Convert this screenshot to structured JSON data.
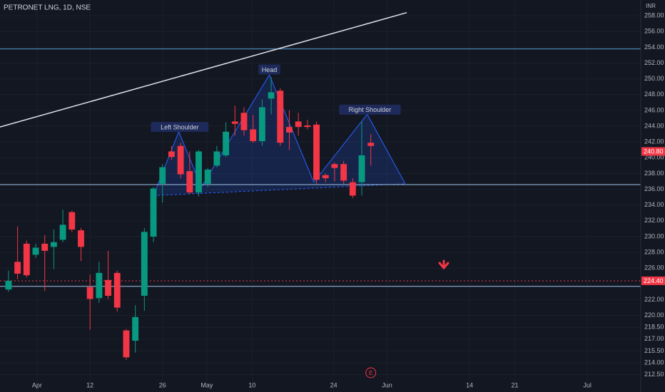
{
  "chart_data": {
    "type": "candlestick",
    "title": "PETRONET LNG, 1D, NSE",
    "currency": "INR",
    "x": [
      0,
      1,
      2,
      3,
      4,
      5,
      6,
      7,
      8,
      9,
      10,
      11,
      12,
      13,
      14,
      15,
      16,
      17,
      18,
      19,
      20,
      21,
      22,
      23,
      24,
      25,
      26,
      27,
      28,
      29,
      30,
      31,
      32,
      33,
      34,
      35,
      36,
      37,
      38,
      39,
      40
    ],
    "open": [
      223.3,
      226.8,
      229.1,
      227.7,
      229.1,
      228.7,
      229.6,
      233.1,
      230.8,
      223.6,
      222.2,
      224.5,
      225.4,
      218.1,
      216.8,
      222.5,
      230.0,
      236.7,
      240.8,
      241.5,
      238.3,
      235.6,
      236.7,
      239.0,
      240.3,
      244.6,
      245.7,
      243.6,
      242.1,
      247.5,
      248.5,
      243.9,
      244.6,
      244.1,
      244.2,
      237.8,
      239.2,
      239.2,
      236.9,
      236.9,
      241.9
    ],
    "high": [
      225.7,
      231.3,
      229.5,
      229.1,
      230.2,
      230.9,
      233.4,
      233.3,
      231.1,
      225.2,
      226.8,
      228.2,
      225.7,
      218.3,
      221.3,
      231.1,
      236.3,
      239.2,
      241.5,
      241.9,
      240.8,
      241.0,
      238.7,
      241.5,
      244.5,
      246.6,
      246.4,
      245.4,
      247.4,
      250.2,
      248.8,
      246.0,
      245.7,
      244.8,
      244.6,
      238.0,
      239.4,
      239.6,
      237.4,
      244.6,
      243.0
    ],
    "low": [
      223.0,
      224.6,
      224.8,
      227.3,
      223.1,
      225.9,
      229.3,
      230.6,
      226.9,
      218.2,
      221.6,
      222.1,
      220.5,
      214.4,
      215.3,
      220.6,
      229.3,
      234.3,
      239.7,
      237.4,
      235.4,
      235.1,
      236.3,
      238.8,
      240.1,
      242.8,
      242.8,
      241.9,
      241.5,
      245.5,
      241.5,
      241.0,
      242.8,
      243.6,
      236.7,
      236.9,
      237.0,
      236.7,
      234.9,
      235.2,
      239.0
    ],
    "close": [
      224.4,
      225.3,
      225.1,
      228.6,
      228.2,
      229.3,
      231.5,
      230.9,
      228.7,
      222.1,
      225.4,
      222.5,
      221.0,
      214.7,
      219.8,
      230.6,
      236.1,
      238.8,
      240.1,
      237.9,
      235.6,
      240.8,
      238.5,
      240.8,
      243.3,
      244.3,
      243.5,
      242.1,
      246.4,
      248.3,
      241.9,
      243.2,
      243.9,
      243.9,
      237.2,
      237.4,
      238.7,
      237.1,
      235.2,
      240.3,
      241.5
    ],
    "up_color": "#089981",
    "down_color": "#f23645",
    "xlim": [
      -0.94,
      69.8
    ],
    "ylim": [
      210.3,
      260.0
    ],
    "xticks": [
      {
        "value": 3.15,
        "label": "Apr"
      },
      {
        "value": 9.0,
        "label": "12"
      },
      {
        "value": 17.0,
        "label": "26"
      },
      {
        "value": 21.9,
        "label": "May"
      },
      {
        "value": 26.9,
        "label": "10"
      },
      {
        "value": 35.9,
        "label": "24"
      },
      {
        "value": 41.8,
        "label": "Jun"
      },
      {
        "value": 50.9,
        "label": "14"
      },
      {
        "value": 55.9,
        "label": "21"
      },
      {
        "value": 63.9,
        "label": "Jul"
      }
    ],
    "yticks": [
      {
        "value": 258,
        "label": "258.00"
      },
      {
        "value": 256,
        "label": "256.00"
      },
      {
        "value": 254,
        "label": "254.00"
      },
      {
        "value": 252,
        "label": "252.00"
      },
      {
        "value": 250,
        "label": "250.00"
      },
      {
        "value": 248,
        "label": "248.00"
      },
      {
        "value": 246,
        "label": "246.00"
      },
      {
        "value": 244,
        "label": "244.00"
      },
      {
        "value": 242,
        "label": "242.00"
      },
      {
        "value": 240,
        "label": "240.00"
      },
      {
        "value": 238,
        "label": "238.00"
      },
      {
        "value": 236,
        "label": "236.00"
      },
      {
        "value": 234,
        "label": "234.00"
      },
      {
        "value": 232,
        "label": "232.00"
      },
      {
        "value": 230,
        "label": "230.00"
      },
      {
        "value": 228,
        "label": "228.00"
      },
      {
        "value": 226,
        "label": "226.00"
      },
      {
        "value": 222,
        "label": "222.00"
      },
      {
        "value": 220,
        "label": "220.00"
      },
      {
        "value": 218.5,
        "label": "218.50"
      },
      {
        "value": 217,
        "label": "217.00"
      },
      {
        "value": 215.5,
        "label": "215.50"
      },
      {
        "value": 214,
        "label": "214.00"
      },
      {
        "value": 212.5,
        "label": "212.50"
      }
    ],
    "levels": [
      {
        "value": 253.8,
        "color": "#5b9bd5",
        "style": "solid"
      },
      {
        "value": 236.6,
        "color": "#9fc5e8",
        "style": "solid"
      },
      {
        "value": 224.4,
        "color": "#f23645",
        "style": "dotted"
      },
      {
        "value": 223.7,
        "color": "#9fc5e8",
        "style": "solid"
      }
    ],
    "price_tags": [
      {
        "value": 240.8,
        "label": "240.80"
      },
      {
        "value": 224.4,
        "label": "224.40"
      }
    ],
    "trendline": {
      "x": [
        -0.94,
        43.97
      ],
      "y": [
        243.9,
        258.4
      ]
    },
    "pattern": {
      "x": [
        16.0,
        18.8,
        21.3,
        28.8,
        33.7,
        39.6,
        43.8
      ],
      "y": [
        235.2,
        243.3,
        236.3,
        250.5,
        236.9,
        245.5,
        236.7
      ]
    },
    "annotations": [
      {
        "text": "Left Shoulder",
        "x": 18.9,
        "y": 243.9
      },
      {
        "text": "Head",
        "x": 28.8,
        "y": 251.2
      },
      {
        "text": "Right Shoulder",
        "x": 39.9,
        "y": 246.1
      }
    ],
    "event_marker": {
      "text": "E",
      "x": 40
    }
  }
}
